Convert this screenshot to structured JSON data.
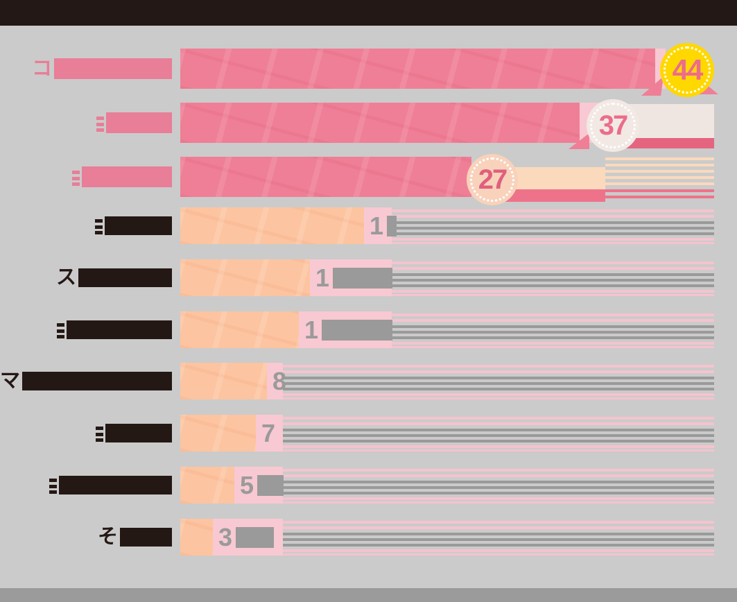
{
  "background": "#cbcbcb",
  "header_bar": {
    "color": "#231815",
    "text": ""
  },
  "footer_bar": {
    "color": "#9b9b9b",
    "text": ""
  },
  "chart_data": {
    "type": "bar",
    "orientation": "horizontal",
    "title": "",
    "xlabel": "",
    "ylabel": "",
    "value_axis_range": [
      0,
      50
    ],
    "grid": false,
    "legend": false,
    "note": "",
    "categories": [
      "コ…(censored)",
      "…(censored)",
      "…(censored)",
      "…(censored)",
      "ス…(censored)",
      "…(censored)",
      "マ…(censored)",
      "…(censored)",
      "…(censored)",
      "そ…(censored)"
    ],
    "values": [
      44,
      37,
      27,
      17,
      12,
      11,
      8,
      7,
      5,
      3
    ],
    "rows": [
      {
        "label_visible_prefix": "コ",
        "label_censored": true,
        "value": 44,
        "value_label_visible": "44",
        "badge": "gold",
        "bar_style": "pink"
      },
      {
        "label_visible_prefix": "",
        "label_censored": true,
        "value": 37,
        "value_label_visible": "37",
        "badge": "cream",
        "bar_style": "pink"
      },
      {
        "label_visible_prefix": "",
        "label_censored": true,
        "value": 27,
        "value_label_visible": "27",
        "badge": "peach",
        "bar_style": "pink"
      },
      {
        "label_visible_prefix": "",
        "label_censored": true,
        "value": 17,
        "value_label_visible": "1",
        "badge": null,
        "bar_style": "peach"
      },
      {
        "label_visible_prefix": "ス",
        "label_censored": true,
        "value": 12,
        "value_label_visible": "1",
        "badge": null,
        "bar_style": "peach"
      },
      {
        "label_visible_prefix": "",
        "label_censored": true,
        "value": 11,
        "value_label_visible": "1",
        "badge": null,
        "bar_style": "peach"
      },
      {
        "label_visible_prefix": "マ",
        "label_censored": true,
        "value": 8,
        "value_label_visible": "8",
        "badge": null,
        "bar_style": "peach"
      },
      {
        "label_visible_prefix": "",
        "label_censored": true,
        "value": 7,
        "value_label_visible": "7",
        "badge": null,
        "bar_style": "peach"
      },
      {
        "label_visible_prefix": "",
        "label_censored": true,
        "value": 5,
        "value_label_visible": "5",
        "badge": null,
        "bar_style": "peach"
      },
      {
        "label_visible_prefix": "そ",
        "label_censored": true,
        "value": 3,
        "value_label_visible": "3",
        "badge": null,
        "bar_style": "peach"
      }
    ],
    "colors": {
      "bar_pink": "#ef7f96",
      "bar_peach": "#fcc4a0",
      "track_pink": "#f8c9d2",
      "badge_gold": "#ffd800",
      "badge_cream": "#f2e9e4",
      "badge_peach": "#f8d2bb",
      "badge_number_pink": "#ec6c8c",
      "ribbon_cream": "#efe6e2",
      "ribbon_peach": "#fbd9bd",
      "ribbon_band_pink": "#e5647f",
      "value_gray": "#9a9a9a",
      "label_pink": "#e87e97",
      "label_dark": "#241815",
      "background_gray": "#cbcbcb",
      "header_dark": "#231815",
      "footer_gray": "#9b9b9b"
    }
  }
}
